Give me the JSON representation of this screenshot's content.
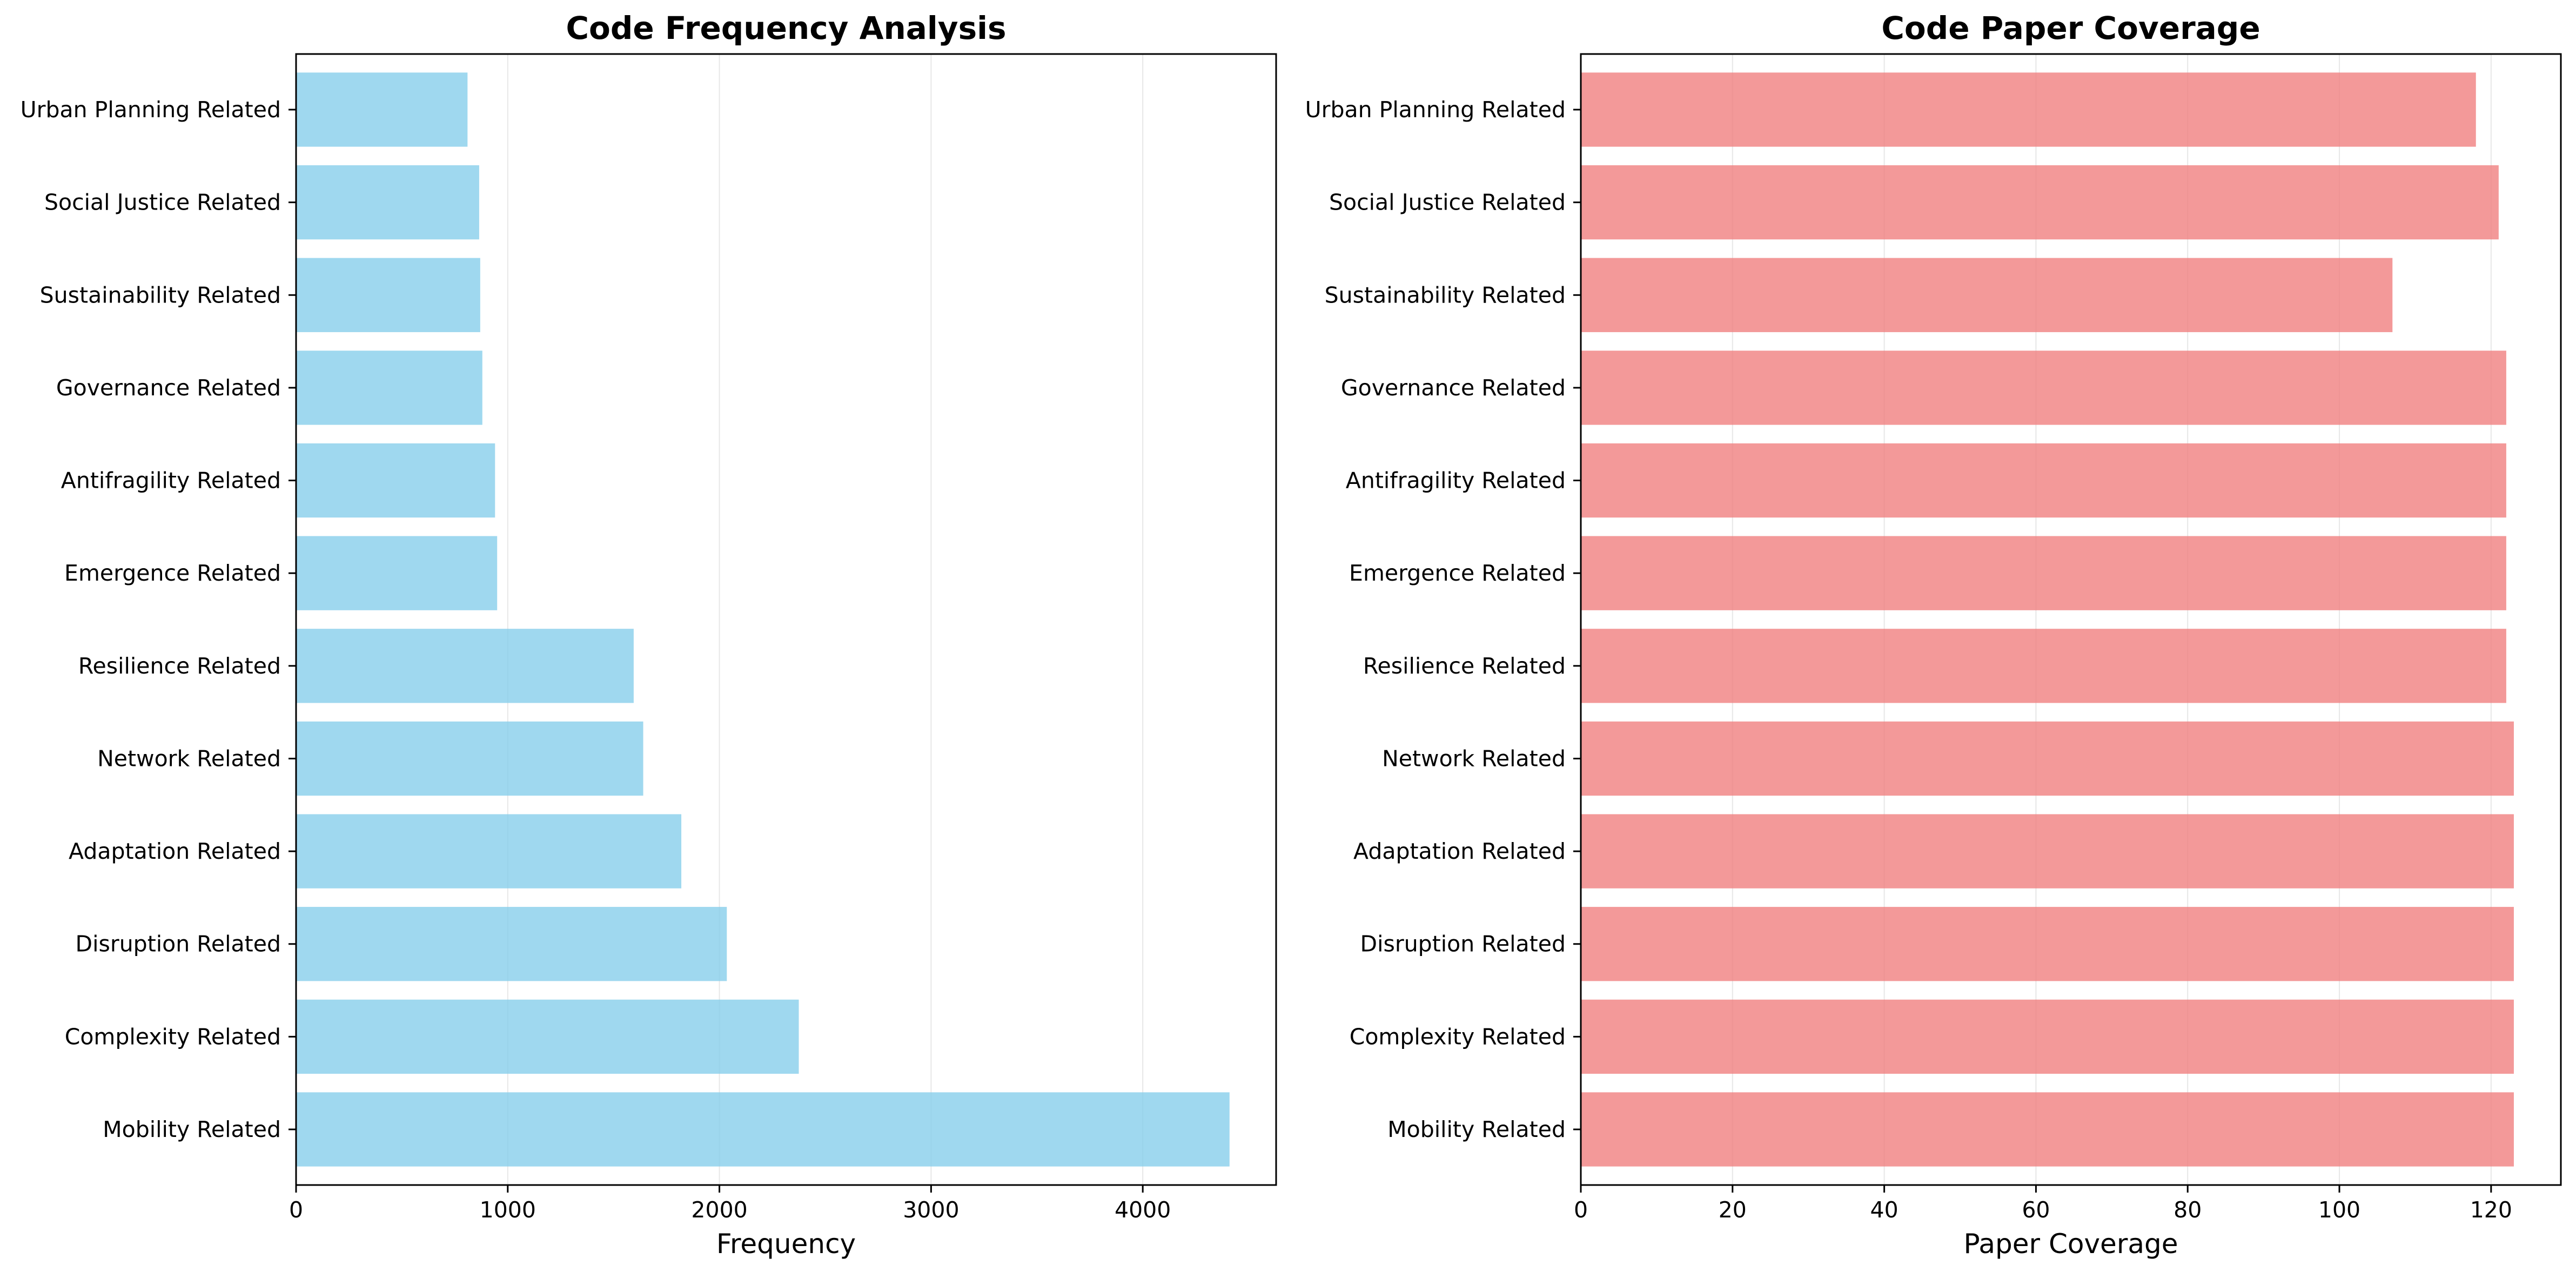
{
  "chart_data": [
    {
      "type": "bar",
      "orientation": "horizontal",
      "title": "Code Frequency Analysis",
      "xlabel": "Frequency",
      "ylabel": "",
      "categories": [
        "Mobility Related",
        "Complexity Related",
        "Disruption Related",
        "Adaptation Related",
        "Network Related",
        "Resilience Related",
        "Emergence Related",
        "Antifragility Related",
        "Governance Related",
        "Sustainability Related",
        "Social Justice Related",
        "Urban Planning Related"
      ],
      "values": [
        4410,
        2375,
        2035,
        1820,
        1640,
        1595,
        950,
        940,
        880,
        870,
        865,
        810
      ],
      "xlim": [
        0,
        4630
      ],
      "xticks": [
        0,
        1000,
        2000,
        3000,
        4000
      ],
      "grid": "x",
      "color": "#87CEEB"
    },
    {
      "type": "bar",
      "orientation": "horizontal",
      "title": "Code Paper Coverage",
      "xlabel": "Paper Coverage",
      "ylabel": "",
      "categories": [
        "Mobility Related",
        "Complexity Related",
        "Disruption Related",
        "Adaptation Related",
        "Network Related",
        "Resilience Related",
        "Emergence Related",
        "Antifragility Related",
        "Governance Related",
        "Sustainability Related",
        "Social Justice Related",
        "Urban Planning Related"
      ],
      "values": [
        123,
        123,
        123,
        123,
        123,
        122,
        122,
        122,
        122,
        107,
        121,
        118
      ],
      "xlim": [
        0,
        129.2
      ],
      "xticks": [
        0,
        20,
        40,
        60,
        80,
        100,
        120
      ],
      "grid": "x",
      "color": "#F08080"
    }
  ]
}
